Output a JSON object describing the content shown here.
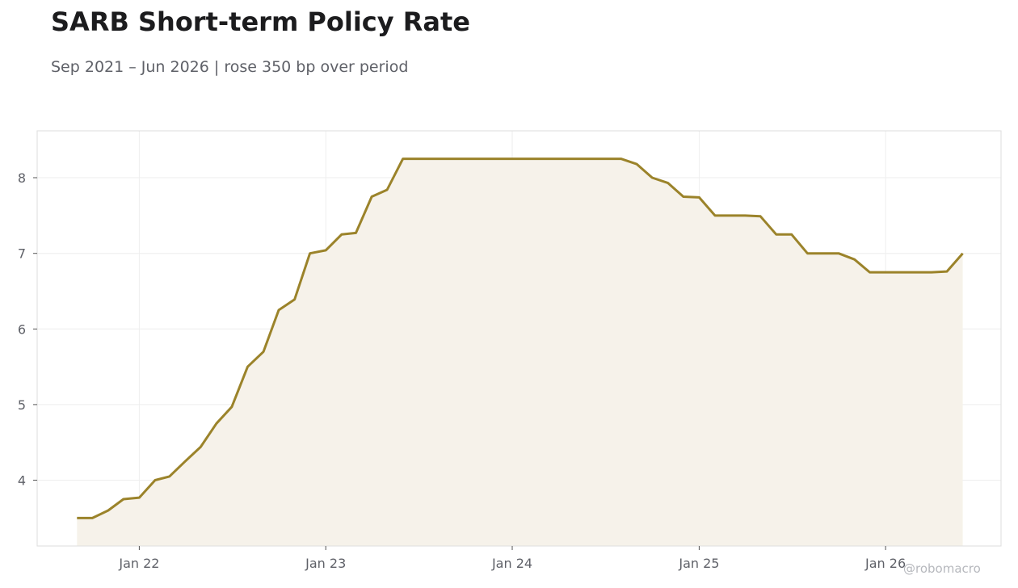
{
  "title": "SARB Short-term Policy Rate",
  "subtitle": "Sep 2021 – Jun 2026 | rose 350 bp over period",
  "credit": "@robomacro",
  "colors": {
    "line": "#9b832a",
    "fill": "#f6f2ea",
    "grid": "#eeeeee",
    "frame": "#dddddd",
    "text": "#5f6168"
  },
  "chart_data": {
    "type": "area",
    "x_axis": {
      "type": "time",
      "range": [
        "2021-06-15",
        "2026-08-15"
      ],
      "ticks": [
        {
          "date": "2022-01-01",
          "label": "Jan 22"
        },
        {
          "date": "2023-01-01",
          "label": "Jan 23"
        },
        {
          "date": "2024-01-01",
          "label": "Jan 24"
        },
        {
          "date": "2025-01-01",
          "label": "Jan 25"
        },
        {
          "date": "2026-01-01",
          "label": "Jan 26"
        }
      ]
    },
    "y_axis": {
      "range": [
        3.13,
        8.62
      ],
      "ticks": [
        4,
        5,
        6,
        7,
        8
      ]
    },
    "grid": true,
    "series": [
      {
        "points": [
          [
            "2021-09-01",
            3.5
          ],
          [
            "2021-10-01",
            3.5
          ],
          [
            "2021-11-01",
            3.6
          ],
          [
            "2021-12-01",
            3.75
          ],
          [
            "2022-01-01",
            3.77
          ],
          [
            "2022-02-01",
            4.0
          ],
          [
            "2022-03-01",
            4.05
          ],
          [
            "2022-04-01",
            4.25
          ],
          [
            "2022-05-01",
            4.44
          ],
          [
            "2022-06-01",
            4.75
          ],
          [
            "2022-07-01",
            4.97
          ],
          [
            "2022-08-01",
            5.5
          ],
          [
            "2022-09-01",
            5.7
          ],
          [
            "2022-10-01",
            6.25
          ],
          [
            "2022-11-01",
            6.39
          ],
          [
            "2022-12-01",
            7.0
          ],
          [
            "2023-01-01",
            7.04
          ],
          [
            "2023-02-01",
            7.25
          ],
          [
            "2023-03-01",
            7.27
          ],
          [
            "2023-04-01",
            7.75
          ],
          [
            "2023-05-01",
            7.84
          ],
          [
            "2023-06-01",
            8.25
          ],
          [
            "2023-07-01",
            8.25
          ],
          [
            "2023-08-01",
            8.25
          ],
          [
            "2023-09-01",
            8.25
          ],
          [
            "2023-10-01",
            8.25
          ],
          [
            "2023-11-01",
            8.25
          ],
          [
            "2023-12-01",
            8.25
          ],
          [
            "2024-01-01",
            8.25
          ],
          [
            "2024-02-01",
            8.25
          ],
          [
            "2024-03-01",
            8.25
          ],
          [
            "2024-04-01",
            8.25
          ],
          [
            "2024-05-01",
            8.25
          ],
          [
            "2024-06-01",
            8.25
          ],
          [
            "2024-07-01",
            8.25
          ],
          [
            "2024-08-01",
            8.25
          ],
          [
            "2024-09-01",
            8.18
          ],
          [
            "2024-10-01",
            8.0
          ],
          [
            "2024-11-01",
            7.93
          ],
          [
            "2024-12-01",
            7.75
          ],
          [
            "2025-01-01",
            7.74
          ],
          [
            "2025-02-01",
            7.5
          ],
          [
            "2025-03-01",
            7.5
          ],
          [
            "2025-04-01",
            7.5
          ],
          [
            "2025-05-01",
            7.49
          ],
          [
            "2025-06-01",
            7.25
          ],
          [
            "2025-07-01",
            7.25
          ],
          [
            "2025-08-01",
            7.0
          ],
          [
            "2025-09-01",
            7.0
          ],
          [
            "2025-10-01",
            7.0
          ],
          [
            "2025-11-01",
            6.92
          ],
          [
            "2025-12-01",
            6.75
          ],
          [
            "2026-01-01",
            6.75
          ],
          [
            "2026-02-01",
            6.75
          ],
          [
            "2026-03-01",
            6.75
          ],
          [
            "2026-04-01",
            6.75
          ],
          [
            "2026-05-01",
            6.76
          ],
          [
            "2026-06-01",
            7.0
          ]
        ]
      }
    ]
  }
}
